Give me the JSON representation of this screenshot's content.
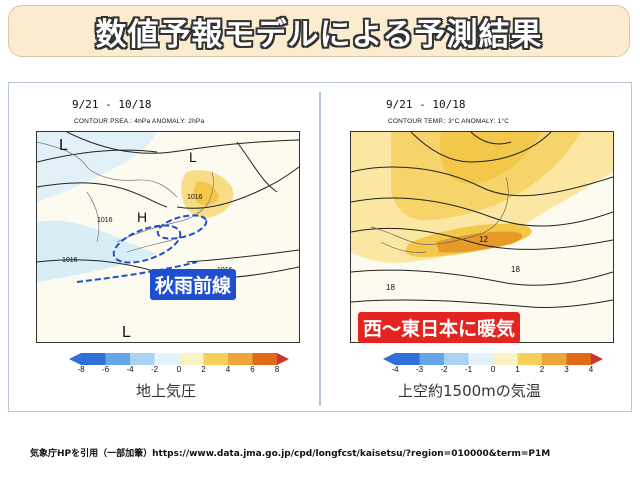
{
  "title": "数値予報モデルによる予測結果",
  "left_panel": {
    "date_range": "9/21 - 10/18",
    "header": "CONTOUR PSEA.: 4hPa   ANOMALY: 2hPa",
    "labels": {
      "low_top": "L",
      "high": "H",
      "low_right": "L",
      "low_bottom": "L",
      "isobar_1": "1016",
      "isobar_2": "1016",
      "isobar_3": "1016",
      "isobar_4": "1016"
    },
    "colorbar_ticks": [
      "-8",
      "-6",
      "-4",
      "-2",
      "0",
      "2",
      "4",
      "6",
      "8"
    ],
    "caption": "地上気圧",
    "callout": "秋雨前線"
  },
  "right_panel": {
    "date_range": "9/21 - 10/18",
    "header": "CONTOUR TEMP.: 3°C   ANOMALY: 1°C",
    "labels": {
      "contour_1": "12",
      "contour_2": "18",
      "contour_3": "18"
    },
    "colorbar_ticks": [
      "-4",
      "-3",
      "-2",
      "-1",
      "0",
      "1",
      "2",
      "3",
      "4"
    ],
    "caption": "上空約1500mの気温",
    "callout": "西〜東日本に暖気"
  },
  "source": "気象庁HPを引用（一部加筆）https://www.data.jma.go.jp/cpd/longfcst/kaisetsu/?region=010000&term=P1M",
  "colors": {
    "title_bg": "#fbeccf",
    "callout_blue": "#1d4fd0",
    "callout_red": "#e32420",
    "warm_light": "#fbe7a2",
    "warm_mid": "#f3c84a",
    "warm_dark": "#e79a27",
    "cool_light": "#d8eef7"
  }
}
